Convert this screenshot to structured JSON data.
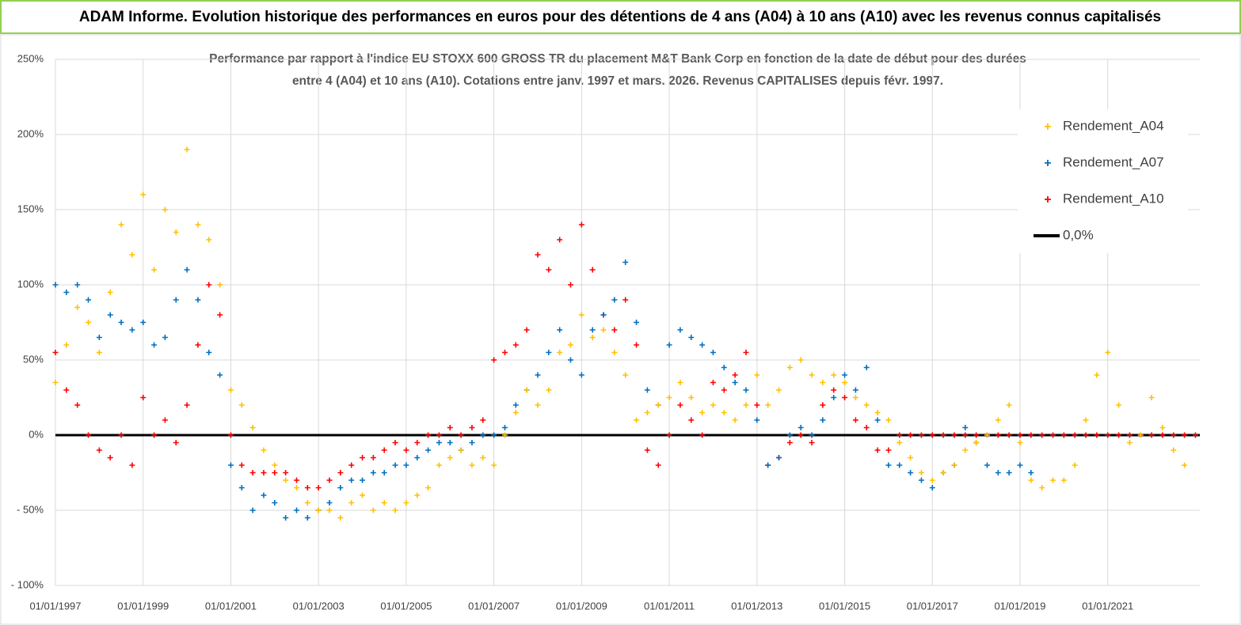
{
  "header": {
    "title": "ADAM Informe. Evolution historique des performances en euros pour des détentions de 4 ans (A04) à 10 ans (A10) avec les revenus connus capitalisés"
  },
  "chart_data": {
    "type": "scatter",
    "title": "Performance par rapport à l'indice EU STOXX 600 GROSS TR  du placement M&T Bank Corp en fonction de la date de début pour des durées",
    "subtitle": "entre 4 (A04) et 10 ans (A10). Cotations entre janv. 1997 et mars. 2026. Revenus CAPITALISES depuis févr. 1997.",
    "xlim": [
      1997,
      2023.1
    ],
    "xticks": [
      {
        "value": 1997,
        "label": "01/01/1997"
      },
      {
        "value": 1999,
        "label": "01/01/1999"
      },
      {
        "value": 2001,
        "label": "01/01/2001"
      },
      {
        "value": 2003,
        "label": "01/01/2003"
      },
      {
        "value": 2005,
        "label": "01/01/2005"
      },
      {
        "value": 2007,
        "label": "01/01/2007"
      },
      {
        "value": 2009,
        "label": "01/01/2009"
      },
      {
        "value": 2011,
        "label": "01/01/2011"
      },
      {
        "value": 2013,
        "label": "01/01/2013"
      },
      {
        "value": 2015,
        "label": "01/01/2015"
      },
      {
        "value": 2017,
        "label": "01/01/2017"
      },
      {
        "value": 2019,
        "label": "01/01/2019"
      },
      {
        "value": 2021,
        "label": "01/01/2021"
      }
    ],
    "ylim": [
      -100,
      250
    ],
    "yticks": [
      {
        "value": -100,
        "label": "- 100%"
      },
      {
        "value": -50,
        "label": "- 50%"
      },
      {
        "value": 0,
        "label": "0%"
      },
      {
        "value": 50,
        "label": "50%"
      },
      {
        "value": 100,
        "label": "100%"
      },
      {
        "value": 150,
        "label": "150%"
      },
      {
        "value": 200,
        "label": "200%"
      },
      {
        "value": 250,
        "label": "250%"
      }
    ],
    "grid": true,
    "legend": "right",
    "series": [
      {
        "name": "Rendement_A04",
        "color": "#ffc000",
        "marker": "+",
        "x": [
          1997,
          1997.25,
          1997.5,
          1997.75,
          1998,
          1998.25,
          1998.5,
          1998.75,
          1999,
          1999.25,
          1999.5,
          1999.75,
          2000,
          2000.25,
          2000.5,
          2000.75,
          2001,
          2001.25,
          2001.5,
          2001.75,
          2002,
          2002.25,
          2002.5,
          2002.75,
          2003,
          2003.25,
          2003.5,
          2003.75,
          2004,
          2004.25,
          2004.5,
          2004.75,
          2005,
          2005.25,
          2005.5,
          2005.75,
          2006,
          2006.25,
          2006.5,
          2006.75,
          2007,
          2007.25,
          2007.5,
          2007.75,
          2008,
          2008.25,
          2008.5,
          2008.75,
          2009,
          2009.25,
          2009.5,
          2009.75,
          2010,
          2010.25,
          2010.5,
          2010.75,
          2011,
          2011.25,
          2011.5,
          2011.75,
          2012,
          2012.25,
          2012.5,
          2012.75,
          2013,
          2013.25,
          2013.5,
          2013.75,
          2014,
          2014.25,
          2014.5,
          2014.75,
          2015,
          2015.25,
          2015.5,
          2015.75,
          2016,
          2016.25,
          2016.5,
          2016.75,
          2017,
          2017.25,
          2017.5,
          2017.75,
          2018,
          2018.25,
          2018.5,
          2018.75,
          2019,
          2019.25,
          2019.5,
          2019.75,
          2020,
          2020.25,
          2020.5,
          2020.75,
          2021,
          2021.25,
          2021.5,
          2021.75,
          2022,
          2022.25,
          2022.5,
          2022.75
        ],
        "values": [
          35,
          60,
          85,
          75,
          55,
          95,
          140,
          120,
          160,
          110,
          150,
          135,
          190,
          140,
          130,
          100,
          30,
          20,
          5,
          -10,
          -20,
          -30,
          -35,
          -45,
          -50,
          -50,
          -55,
          -45,
          -40,
          -50,
          -45,
          -50,
          -45,
          -40,
          -35,
          -20,
          -15,
          -10,
          -20,
          -15,
          -20,
          0,
          15,
          30,
          20,
          30,
          55,
          60,
          80,
          65,
          70,
          55,
          40,
          10,
          15,
          20,
          25,
          35,
          25,
          15,
          20,
          15,
          10,
          20,
          40,
          20,
          30,
          45,
          50,
          40,
          35,
          40,
          35,
          25,
          20,
          15,
          10,
          -5,
          -15,
          -25,
          -30,
          -25,
          -20,
          -10,
          -5,
          0,
          10,
          20,
          -5,
          -30,
          -35,
          -30,
          -30,
          -20,
          10,
          40,
          55,
          20,
          -5,
          0,
          25,
          5,
          -10,
          -20
        ]
      },
      {
        "name": "Rendement_A07",
        "color": "#0070c0",
        "marker": "+",
        "x": [
          1997,
          1997.25,
          1997.5,
          1997.75,
          1998,
          1998.25,
          1998.5,
          1998.75,
          1999,
          1999.25,
          1999.5,
          1999.75,
          2000,
          2000.25,
          2000.5,
          2000.75,
          2001,
          2001.25,
          2001.5,
          2001.75,
          2002,
          2002.25,
          2002.5,
          2002.75,
          2003,
          2003.25,
          2003.5,
          2003.75,
          2004,
          2004.25,
          2004.5,
          2004.75,
          2005,
          2005.25,
          2005.5,
          2005.75,
          2006,
          2006.25,
          2006.5,
          2006.75,
          2007,
          2007.25,
          2007.5,
          2007.75,
          2008,
          2008.25,
          2008.5,
          2008.75,
          2009,
          2009.25,
          2009.5,
          2009.75,
          2010,
          2010.25,
          2010.5,
          2010.75,
          2011,
          2011.25,
          2011.5,
          2011.75,
          2012,
          2012.25,
          2012.5,
          2012.75,
          2013,
          2013.25,
          2013.5,
          2013.75,
          2014,
          2014.25,
          2014.5,
          2014.75,
          2015,
          2015.25,
          2015.5,
          2015.75,
          2016,
          2016.25,
          2016.5,
          2016.75,
          2017,
          2017.25,
          2017.5,
          2017.75,
          2018,
          2018.25,
          2018.5,
          2018.75,
          2019,
          2019.25
        ],
        "values": [
          100,
          95,
          100,
          90,
          65,
          80,
          75,
          70,
          75,
          60,
          65,
          90,
          110,
          90,
          55,
          40,
          -20,
          -35,
          -50,
          -40,
          -45,
          -55,
          -50,
          -55,
          -50,
          -45,
          -35,
          -30,
          -30,
          -25,
          -25,
          -20,
          -20,
          -15,
          -10,
          -5,
          -5,
          -10,
          -5,
          0,
          0,
          5,
          20,
          30,
          40,
          55,
          70,
          50,
          40,
          70,
          80,
          90,
          115,
          75,
          30,
          20,
          60,
          70,
          65,
          60,
          55,
          45,
          35,
          30,
          10,
          -20,
          -15,
          0,
          5,
          0,
          10,
          25,
          40,
          30,
          45,
          10,
          -20,
          -20,
          -25,
          -30,
          -35,
          -25,
          -20,
          5,
          -5,
          -20,
          -25,
          -25,
          -20,
          -25
        ]
      },
      {
        "name": "Rendement_A10",
        "color": "#ff0000",
        "marker": "+",
        "x": [
          1997,
          1997.25,
          1997.5,
          1997.75,
          1998,
          1998.25,
          1998.5,
          1998.75,
          1999,
          1999.25,
          1999.5,
          1999.75,
          2000,
          2000.25,
          2000.5,
          2000.75,
          2001,
          2001.25,
          2001.5,
          2001.75,
          2002,
          2002.25,
          2002.5,
          2002.75,
          2003,
          2003.25,
          2003.5,
          2003.75,
          2004,
          2004.25,
          2004.5,
          2004.75,
          2005,
          2005.25,
          2005.5,
          2005.75,
          2006,
          2006.25,
          2006.5,
          2006.75,
          2007,
          2007.25,
          2007.5,
          2007.75,
          2008,
          2008.25,
          2008.5,
          2008.75,
          2009,
          2009.25,
          2009.5,
          2009.75,
          2010,
          2010.25,
          2010.5,
          2010.75,
          2011,
          2011.25,
          2011.5,
          2011.75,
          2012,
          2012.25,
          2012.5,
          2012.75,
          2013,
          2013.25,
          2013.5,
          2013.75,
          2014,
          2014.25,
          2014.5,
          2014.75,
          2015,
          2015.25,
          2015.5,
          2015.75,
          2016,
          2016.25,
          2016.5,
          2016.75,
          2017,
          2017.25,
          2017.5,
          2017.75,
          2018,
          2018.25,
          2018.5,
          2018.75,
          2019,
          2019.25,
          2019.5,
          2019.75,
          2020,
          2020.25,
          2020.5,
          2020.75,
          2021,
          2021.25,
          2021.5,
          2021.75,
          2022,
          2022.25,
          2022.5,
          2022.75,
          2023
        ],
        "values": [
          55,
          30,
          20,
          0,
          -10,
          -15,
          0,
          -20,
          25,
          0,
          10,
          -5,
          20,
          60,
          100,
          80,
          0,
          -20,
          -25,
          -25,
          -25,
          -25,
          -30,
          -35,
          -35,
          -30,
          -25,
          -20,
          -15,
          -15,
          -10,
          -5,
          -10,
          -5,
          0,
          0,
          5,
          0,
          5,
          10,
          50,
          55,
          60,
          70,
          120,
          110,
          130,
          100,
          140,
          110,
          80,
          70,
          90,
          60,
          -10,
          -20,
          0,
          20,
          10,
          0,
          35,
          30,
          40,
          55,
          20,
          -20,
          -15,
          -5,
          0,
          -5,
          20,
          30,
          25,
          10,
          5,
          -10,
          -10,
          0,
          0,
          0,
          0,
          0,
          0,
          0,
          0,
          0,
          0,
          0,
          0,
          0,
          0,
          0,
          0,
          0,
          0,
          0,
          0,
          0,
          0,
          0,
          0,
          0,
          0,
          0,
          0
        ]
      },
      {
        "name": "0,0%",
        "color": "#000000",
        "line": true,
        "x": [
          1997,
          2023.1
        ],
        "values": [
          0,
          0
        ]
      }
    ]
  }
}
